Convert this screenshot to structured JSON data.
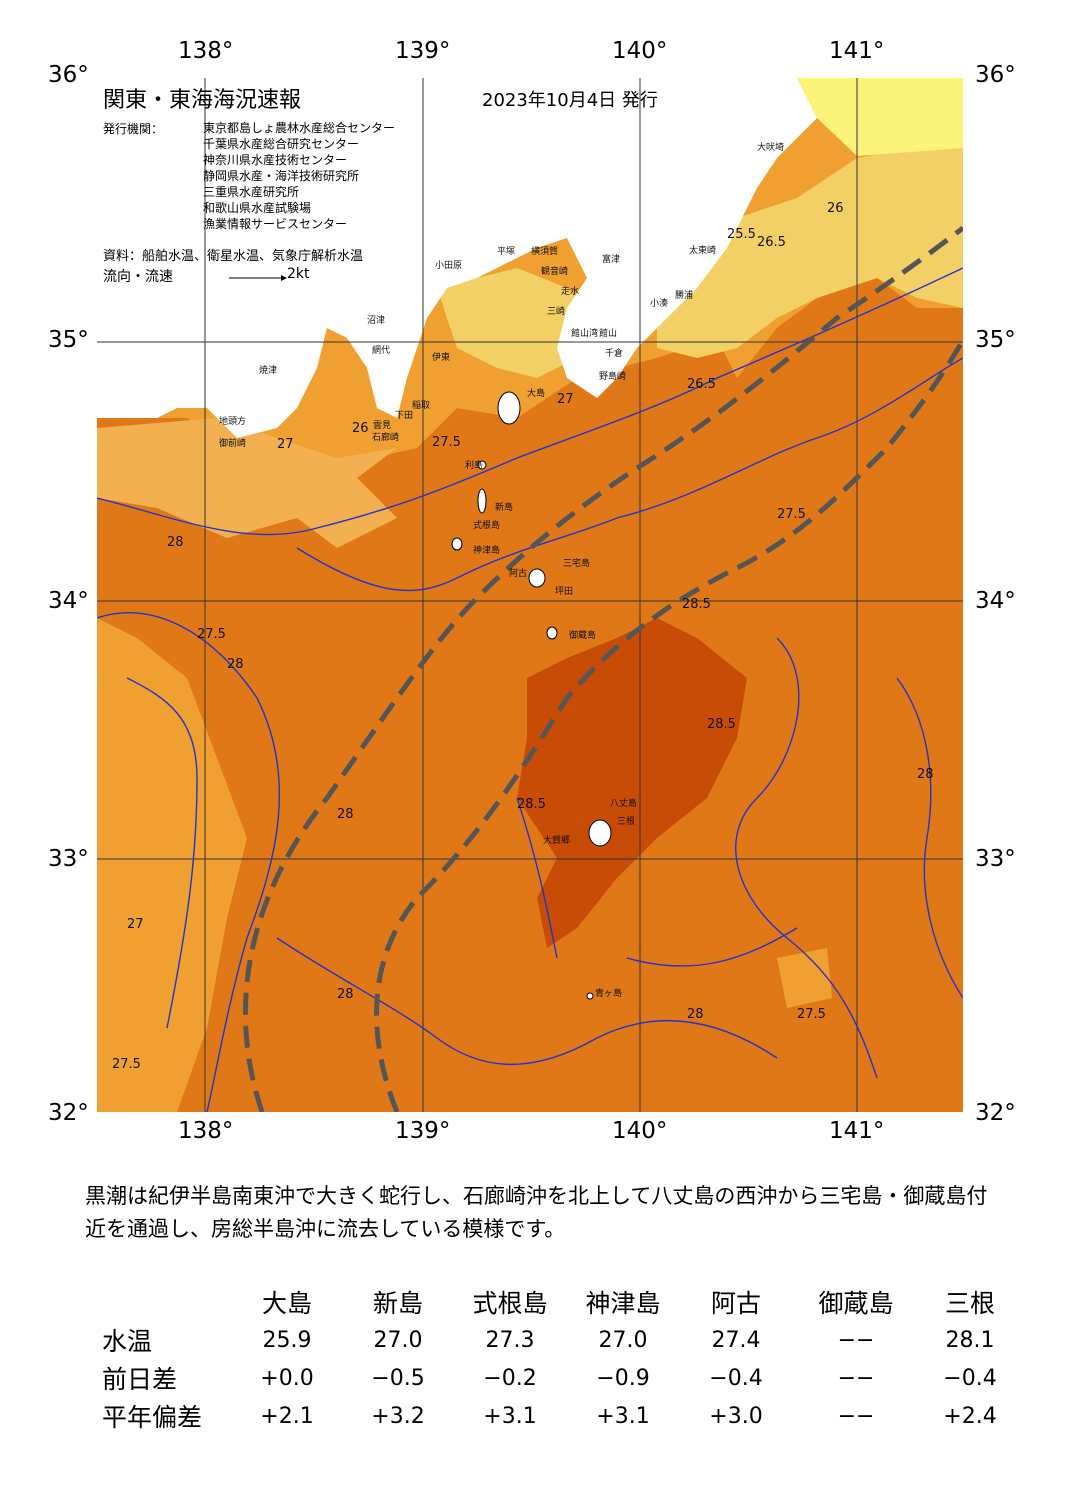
{
  "map": {
    "title": "関東・東海海況速報",
    "date": "2023年10月4日 発行",
    "issuer_label": "発行機関：",
    "issuers": [
      "東京都島しょ農林水産総合センター",
      "千葉県水産総合研究センター",
      "神奈川県水産技術センター",
      "静岡県水産・海洋技術研究所",
      "三重県水産研究所",
      "和歌山県水産試験場",
      "漁業情報サービスセンター"
    ],
    "source": "資料：船舶水温、衛星水温、気象庁解析水温",
    "flow_legend": "流向・流速",
    "flow_scale": "2kt",
    "lon_ticks": [
      "138°",
      "139°",
      "140°",
      "141°"
    ],
    "lat_ticks": [
      "36°",
      "35°",
      "34°",
      "33°",
      "32°"
    ],
    "contour_labels": [
      "26",
      "26.5",
      "27",
      "27.5",
      "28",
      "28.5",
      "25.5"
    ],
    "place_labels": [
      "大島",
      "利島",
      "新島",
      "式根島",
      "神津島",
      "三宅島",
      "阿古",
      "坪田",
      "御蔵島",
      "八丈島",
      "三根",
      "大賀郷",
      "青ヶ島",
      "大吠埼",
      "太東崎",
      "勝浦",
      "小湊",
      "館山",
      "千倉",
      "野島崎",
      "富津",
      "横須賀",
      "観音崎",
      "平塚",
      "小田原",
      "網代",
      "伊東",
      "稲取",
      "下田",
      "石廊崎",
      "雲見",
      "焼津",
      "御前崎",
      "地頭方",
      "沼津",
      "三崎",
      "走水",
      "館山湾"
    ],
    "colors": {
      "coldest": "#fbf37a",
      "cool": "#f3d066",
      "mid": "#f0a030",
      "warm": "#e07818",
      "hot": "#c84c05",
      "land": "#ffffff",
      "contour": "#2233cc",
      "kuroshio_path": "#555555"
    }
  },
  "summary": "黒潮は紀伊半島南東沖で大きく蛇行し、石廊崎沖を北上して八丈島の西沖から三宅島・御蔵島付近を通過し、房総半島沖に流去している模様です。",
  "table": {
    "columns": [
      "大島",
      "新島",
      "式根島",
      "神津島",
      "阿古",
      "御蔵島",
      "三根"
    ],
    "rows": [
      {
        "label": "水温",
        "values": [
          "25.9",
          "27.0",
          "27.3",
          "27.0",
          "27.4",
          "−−",
          "28.1"
        ]
      },
      {
        "label": "前日差",
        "values": [
          "+0.0",
          "−0.5",
          "−0.2",
          "−0.9",
          "−0.4",
          "−−",
          "−0.4"
        ]
      },
      {
        "label": "平年偏差",
        "values": [
          "+2.1",
          "+3.2",
          "+3.1",
          "+3.1",
          "+3.0",
          "−−",
          "+2.4"
        ]
      }
    ]
  }
}
